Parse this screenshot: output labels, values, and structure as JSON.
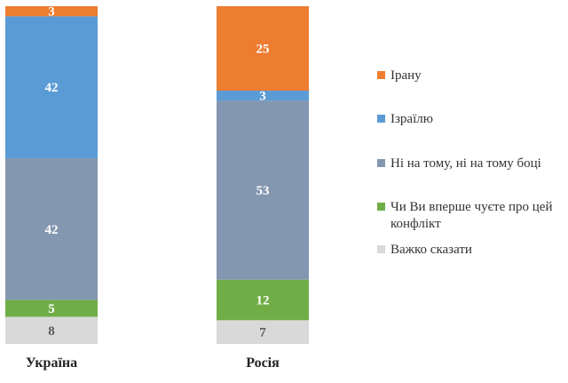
{
  "chart_data": {
    "type": "bar",
    "stacked": true,
    "percent": true,
    "categories": [
      "Україна",
      "Росія"
    ],
    "series": [
      {
        "name": "Ірану",
        "color": "#ED7D31",
        "values": [
          3,
          25
        ],
        "label_color": "#ffffff"
      },
      {
        "name": "Ізраїлю",
        "color": "#5B9BD5",
        "values": [
          42,
          3
        ],
        "label_color": "#ffffff"
      },
      {
        "name": "Ні на тому, ні на тому боці",
        "color": "#8497B0",
        "values": [
          42,
          53
        ],
        "label_color": "#ffffff"
      },
      {
        "name": "Чи Ви вперше чуєте про цей конфлікт",
        "color": "#70AD47",
        "values": [
          5,
          12
        ],
        "label_color": "#ffffff"
      },
      {
        "name": "Важко сказати",
        "color": "#D9D9D9",
        "values": [
          8,
          7
        ],
        "label_color": "#595959"
      }
    ],
    "ylim": [
      0,
      100
    ],
    "legend": "right",
    "grid": false
  }
}
